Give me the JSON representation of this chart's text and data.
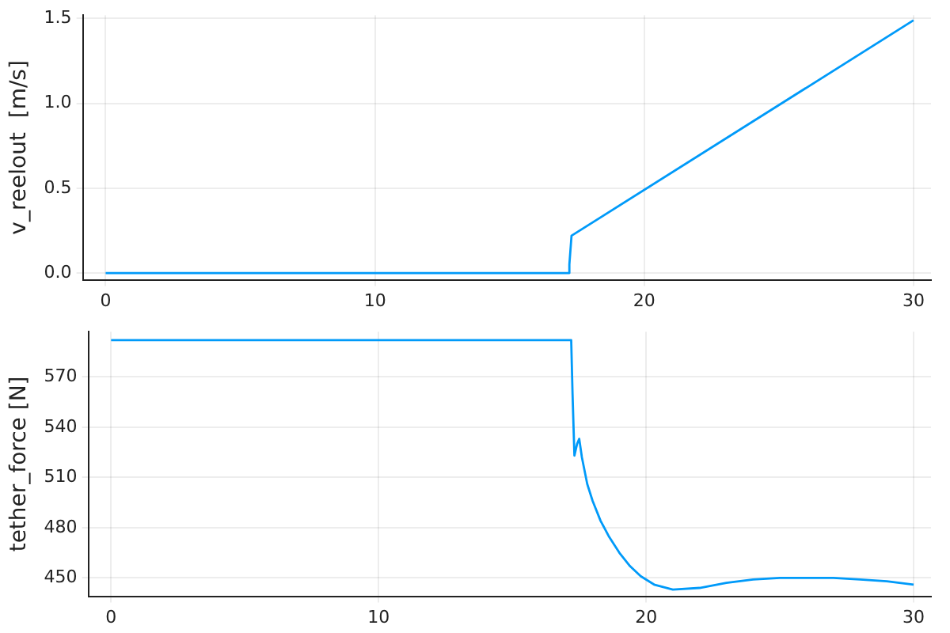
{
  "chart_data": [
    {
      "type": "line",
      "ylabel": "v_reelout  [m/s]",
      "x": [
        0,
        17.2,
        17.22,
        17.3,
        30
      ],
      "series": [
        {
          "color": "#009af9",
          "values": [
            0,
            0,
            0.05,
            0.22,
            1.49
          ]
        }
      ],
      "xlim": [
        -0.85,
        30.65
      ],
      "ylim": [
        -0.04,
        1.52
      ],
      "xticks": [
        0,
        10,
        20,
        30
      ],
      "yticks": [
        {
          "value": 0,
          "label": "0.0"
        },
        0.5,
        {
          "value": 1,
          "label": "1.0"
        },
        1.5
      ],
      "grid": true,
      "legend": false,
      "marker": "none",
      "line_style": "solid"
    },
    {
      "type": "line",
      "ylabel": "tether_force [N]",
      "x": [
        0,
        2,
        4,
        6,
        8,
        10,
        12,
        14,
        16,
        17.2,
        17.25,
        17.32,
        17.42,
        17.5,
        17.6,
        17.8,
        18.0,
        18.3,
        18.6,
        19.0,
        19.4,
        19.8,
        20.3,
        21.0,
        22.0,
        23.0,
        24.0,
        25.0,
        26.0,
        27.0,
        28.0,
        29.0,
        30.0
      ],
      "series": [
        {
          "color": "#009af9",
          "values": [
            592,
            592,
            592,
            592,
            592,
            592,
            592,
            592,
            592,
            592,
            560,
            523,
            530,
            533,
            522,
            506,
            496,
            484,
            475,
            465,
            457,
            451,
            446,
            443,
            444,
            447,
            449,
            450,
            450,
            450,
            449,
            448,
            446
          ]
        }
      ],
      "xlim": [
        -0.85,
        30.65
      ],
      "ylim": [
        439,
        597
      ],
      "xticks": [
        0,
        10,
        20,
        30
      ],
      "yticks": [
        450,
        480,
        510,
        540,
        570
      ],
      "grid": true,
      "legend": false,
      "marker": "none",
      "line_style": "solid"
    }
  ]
}
